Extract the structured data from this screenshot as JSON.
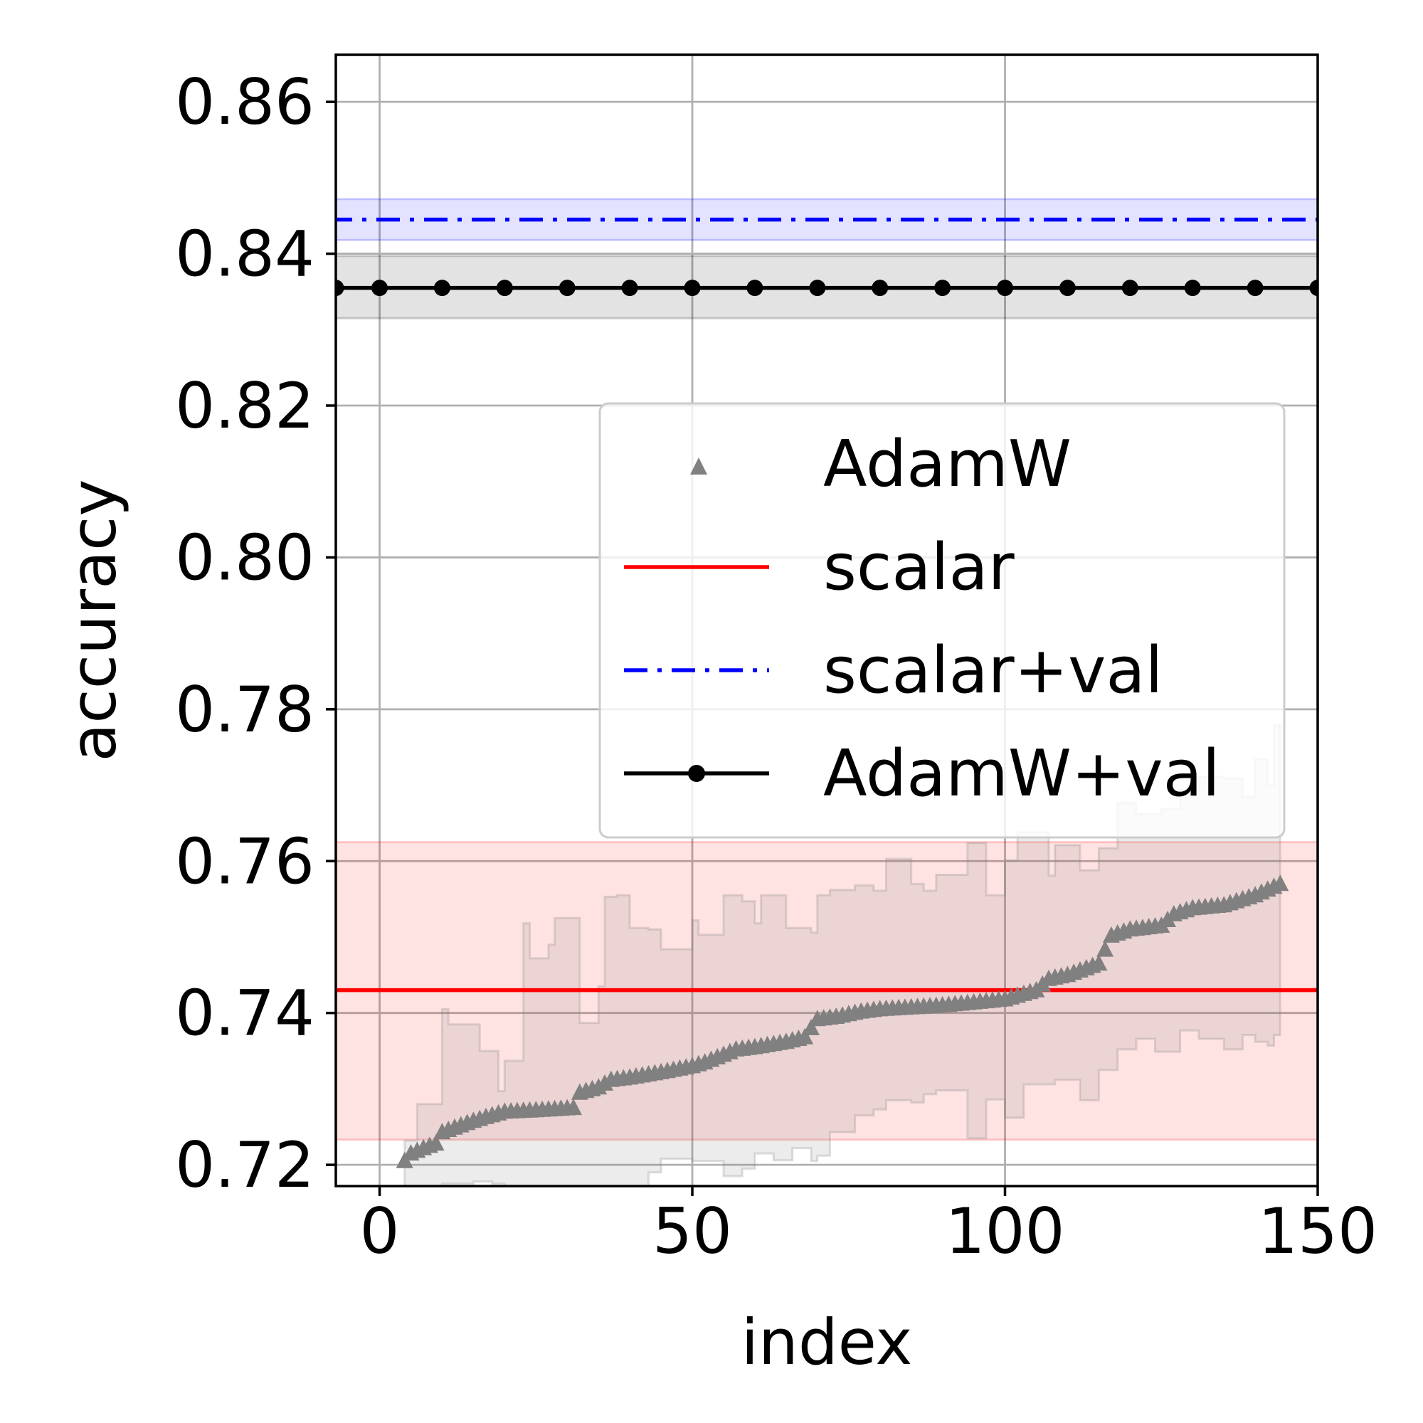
{
  "chart_data": {
    "type": "line",
    "xlabel": "index",
    "ylabel": "accuracy",
    "xlim": [
      -7,
      150
    ],
    "ylim": [
      0.7172,
      0.8662
    ],
    "xticks": [
      0,
      50,
      100,
      150
    ],
    "xtick_labels": [
      "0",
      "50",
      "100",
      "150"
    ],
    "yticks": [
      0.72,
      0.74,
      0.76,
      0.78,
      0.8,
      0.82,
      0.84,
      0.86
    ],
    "ytick_labels": [
      "0.72",
      "0.74",
      "0.76",
      "0.78",
      "0.80",
      "0.82",
      "0.84",
      "0.86"
    ],
    "grid": true,
    "legend_position": "center-right",
    "legend": [
      {
        "label": "AdamW",
        "color": "#808080",
        "style": "triangle-marker"
      },
      {
        "label": "scalar",
        "color": "#ff0000",
        "style": "solid"
      },
      {
        "label": "scalar+val",
        "color": "#0000ff",
        "style": "dash-dot"
      },
      {
        "label": "AdamW+val",
        "color": "#000000",
        "style": "solid-dot"
      }
    ],
    "hlines": [
      {
        "name": "scalar",
        "y": 0.743,
        "band": [
          0.7233,
          0.7625
        ],
        "color": "#ff0000"
      },
      {
        "name": "scalar+val",
        "y": 0.8445,
        "band": [
          0.8418,
          0.8472
        ],
        "color": "#0000ff"
      },
      {
        "name": "AdamW+val",
        "y": 0.8355,
        "band": [
          0.8315,
          0.8397
        ],
        "color": "#000000",
        "marker_x": [
          -7,
          0,
          10,
          20,
          30,
          40,
          50,
          60,
          70,
          80,
          90,
          100,
          110,
          120,
          130,
          140,
          150
        ]
      }
    ],
    "series": [
      {
        "name": "AdamW",
        "color": "#808080",
        "x_start": 4,
        "x_end": 144,
        "anchors_x": [
          4,
          5,
          7,
          9,
          10,
          12,
          15,
          17,
          20,
          25,
          31,
          32,
          35,
          37,
          40,
          45,
          50,
          52,
          55,
          57,
          60,
          65,
          68,
          70,
          73,
          77,
          80,
          90,
          100,
          105,
          107,
          110,
          115,
          117,
          120,
          125,
          127,
          130,
          135,
          140,
          144
        ],
        "anchors_y": [
          0.7205,
          0.7215,
          0.7222,
          0.7228,
          0.7243,
          0.7249,
          0.7258,
          0.7263,
          0.727,
          0.7272,
          0.7275,
          0.7295,
          0.7302,
          0.7312,
          0.7315,
          0.7322,
          0.733,
          0.7335,
          0.7345,
          0.7352,
          0.7355,
          0.7362,
          0.7368,
          0.7392,
          0.7395,
          0.7402,
          0.7405,
          0.741,
          0.7418,
          0.743,
          0.7445,
          0.745,
          0.7465,
          0.7502,
          0.751,
          0.7515,
          0.753,
          0.7538,
          0.7542,
          0.7555,
          0.757
        ],
        "band_upper_x": [
          4,
          6,
          10,
          11,
          16,
          19,
          20,
          23,
          24,
          27,
          28,
          32,
          35,
          36,
          38,
          40,
          43,
          45,
          50,
          51,
          55,
          58,
          60,
          61,
          65,
          69,
          70,
          72,
          76,
          79,
          81,
          85,
          87,
          89,
          94,
          97,
          100,
          102,
          107,
          108,
          112,
          115,
          118,
          121,
          125,
          128,
          131,
          135,
          138,
          140,
          142,
          143
        ],
        "band_upper_y": [
          0.7232,
          0.728,
          0.7405,
          0.7385,
          0.735,
          0.7297,
          0.7337,
          0.7518,
          0.7472,
          0.749,
          0.7525,
          0.7387,
          0.7435,
          0.7553,
          0.7555,
          0.7512,
          0.751,
          0.7484,
          0.7522,
          0.7503,
          0.7555,
          0.7547,
          0.7518,
          0.7555,
          0.7512,
          0.7506,
          0.7555,
          0.7562,
          0.7568,
          0.7561,
          0.7603,
          0.757,
          0.7561,
          0.7582,
          0.7624,
          0.7555,
          0.7601,
          0.7638,
          0.7581,
          0.7621,
          0.7588,
          0.7617,
          0.7677,
          0.7662,
          0.7669,
          0.7694,
          0.7711,
          0.7709,
          0.7685,
          0.7734,
          0.77,
          0.7779
        ],
        "band_lower_x": [
          4,
          6,
          10,
          15,
          18,
          20,
          25,
          30,
          35,
          40,
          43,
          45,
          50,
          55,
          58,
          60,
          63,
          66,
          69,
          70,
          72,
          76,
          79,
          81,
          85,
          87,
          89,
          94,
          97,
          100,
          103,
          108,
          112,
          115,
          118,
          121,
          124,
          128,
          131,
          135,
          138,
          140,
          142,
          143
        ],
        "band_lower_y": [
          0.7168,
          0.7172,
          0.7175,
          0.7178,
          0.7175,
          0.7172,
          0.717,
          0.7172,
          0.7171,
          0.7172,
          0.719,
          0.7208,
          0.7205,
          0.7185,
          0.7195,
          0.7215,
          0.7206,
          0.7222,
          0.7205,
          0.7212,
          0.7243,
          0.7265,
          0.7273,
          0.7285,
          0.7282,
          0.7293,
          0.7298,
          0.7235,
          0.7286,
          0.7262,
          0.7306,
          0.7312,
          0.7285,
          0.7325,
          0.7352,
          0.7366,
          0.7349,
          0.7377,
          0.7366,
          0.7352,
          0.7371,
          0.7362,
          0.7357,
          0.7371
        ]
      }
    ]
  }
}
